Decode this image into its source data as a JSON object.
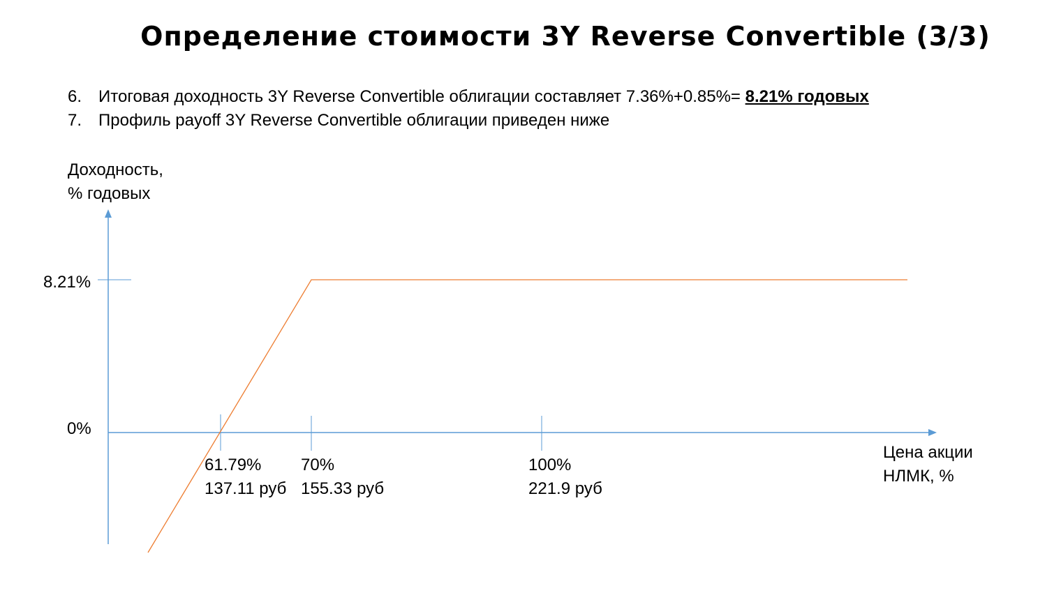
{
  "title": "Определение стоимости 3Y Reverse Convertible  (3/3)",
  "bullets": [
    {
      "num": "6.",
      "text": "Итоговая доходность 3Y Reverse Convertible облигации составляет 7.36%+0.85%= ",
      "highlight": "8.21% годовых"
    },
    {
      "num": "7.",
      "text": "Профиль payoff 3Y Reverse Convertible облигации приведен ниже",
      "highlight": ""
    }
  ],
  "diagram": {
    "y_axis_label_line1": "Доходность,",
    "y_axis_label_line2": "% годовых",
    "x_axis_label_line1": "Цена акции",
    "x_axis_label_line2": "НЛМК, %",
    "y_ticks": [
      "8.21%",
      "0%"
    ],
    "x_ticks": [
      {
        "pct": "61.79%",
        "price": "137.11 руб"
      },
      {
        "pct": "70%",
        "price": "155.33 руб"
      },
      {
        "pct": "100%",
        "price": "221.9 руб"
      }
    ],
    "axis_color": "#5b9bd5",
    "payoff_color": "#ed7d31"
  }
}
